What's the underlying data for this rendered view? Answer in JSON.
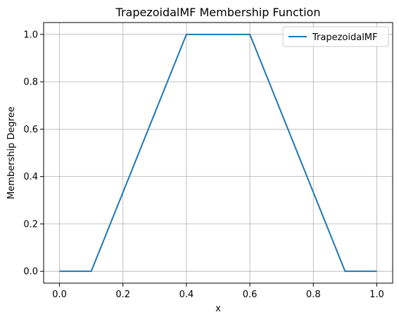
{
  "chart_data": {
    "type": "line",
    "title": "TrapezoidalMF Membership Function",
    "xlabel": "x",
    "ylabel": "Membership Degree",
    "xlim": [
      -0.05,
      1.05
    ],
    "ylim": [
      -0.05,
      1.05
    ],
    "x_ticks": [
      0.0,
      0.2,
      0.4,
      0.6,
      0.8,
      1.0
    ],
    "x_tick_labels": [
      "0.0",
      "0.2",
      "0.4",
      "0.6",
      "0.8",
      "1.0"
    ],
    "y_ticks": [
      0.0,
      0.2,
      0.4,
      0.6,
      0.8,
      1.0
    ],
    "y_tick_labels": [
      "0.0",
      "0.2",
      "0.4",
      "0.6",
      "0.8",
      "1.0"
    ],
    "grid": true,
    "legend_position": "top-right",
    "series": [
      {
        "name": "TrapezoidalMF",
        "color": "#1f77b4",
        "x": [
          0.0,
          0.1,
          0.4,
          0.6,
          0.9,
          1.0
        ],
        "y": [
          0.0,
          0.0,
          1.0,
          1.0,
          0.0,
          0.0
        ]
      }
    ]
  }
}
